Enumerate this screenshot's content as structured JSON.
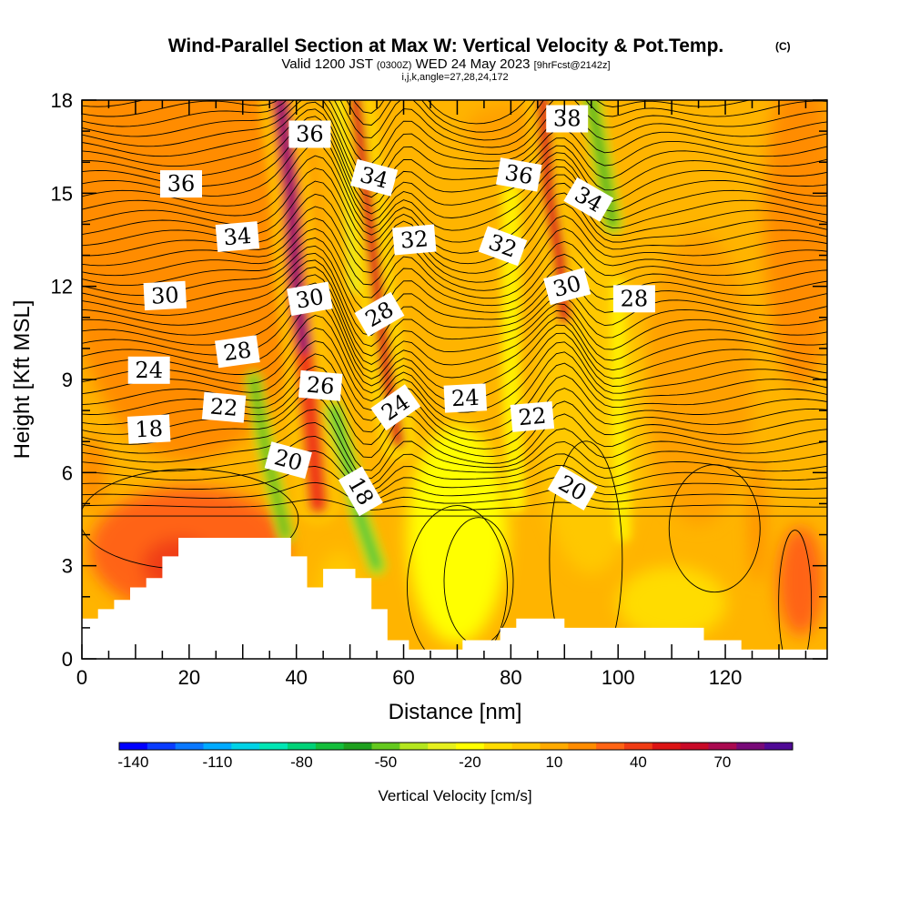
{
  "chart_data": {
    "type": "heatmap",
    "title": "Wind-Parallel Section at Max W: Vertical Velocity & Pot.Temp.",
    "title_badge": "(C)",
    "subtitle": {
      "valid": "Valid 1200 JST",
      "utc": "(0300Z)",
      "date": "WED 24 May 2023",
      "forecast": "[9hrFcst@2142z]"
    },
    "index_line": "i,j,k,angle=27,28,24,172",
    "xlabel": "Distance [nm]",
    "ylabel": "Height [Kft MSL]",
    "xlim": [
      0,
      139
    ],
    "ylim": [
      0,
      18
    ],
    "x_ticks": [
      "0",
      "20",
      "40",
      "60",
      "80",
      "100",
      "120"
    ],
    "y_ticks": [
      "0",
      "3",
      "6",
      "9",
      "12",
      "15",
      "18"
    ],
    "colorbar": {
      "label": "Vertical Velocity [cm/s]",
      "tick_labels": [
        "-140",
        "-110",
        "-80",
        "-50",
        "-20",
        "10",
        "40",
        "70"
      ],
      "colors": [
        "#0000ff",
        "#0a3cff",
        "#0a78ff",
        "#00aaff",
        "#00d2e6",
        "#00e6b4",
        "#00d278",
        "#14be3c",
        "#1ea01e",
        "#64c81e",
        "#b4e61e",
        "#e6f01e",
        "#ffff00",
        "#ffdc00",
        "#ffc800",
        "#ffaa00",
        "#ff8c00",
        "#ff6414",
        "#f03c14",
        "#dc1414",
        "#c80a28",
        "#aa0a50",
        "#780a78",
        "#500a96"
      ]
    },
    "theta_contour_labels": [
      {
        "text": "36",
        "x": 18.5,
        "y": 15.3
      },
      {
        "text": "36",
        "x": 42.5,
        "y": 16.9
      },
      {
        "text": "34",
        "x": 29,
        "y": 13.6
      },
      {
        "text": "34",
        "x": 54.5,
        "y": 15.5
      },
      {
        "text": "30",
        "x": 15.5,
        "y": 11.7
      },
      {
        "text": "30",
        "x": 42.5,
        "y": 11.6
      },
      {
        "text": "28",
        "x": 29,
        "y": 9.9
      },
      {
        "text": "28",
        "x": 55.5,
        "y": 11.1
      },
      {
        "text": "24",
        "x": 12.5,
        "y": 9.3
      },
      {
        "text": "26",
        "x": 44.5,
        "y": 8.8
      },
      {
        "text": "24",
        "x": 58.5,
        "y": 8.1
      },
      {
        "text": "22",
        "x": 26.5,
        "y": 8.1
      },
      {
        "text": "18",
        "x": 12.5,
        "y": 7.4
      },
      {
        "text": "20",
        "x": 38.5,
        "y": 6.4
      },
      {
        "text": "18",
        "x": 52,
        "y": 5.4
      },
      {
        "text": "32",
        "x": 62,
        "y": 13.5
      },
      {
        "text": "32",
        "x": 78.5,
        "y": 13.3
      },
      {
        "text": "24",
        "x": 71.5,
        "y": 8.4
      },
      {
        "text": "22",
        "x": 84,
        "y": 7.8
      },
      {
        "text": "36",
        "x": 81.5,
        "y": 15.6
      },
      {
        "text": "38",
        "x": 90.5,
        "y": 17.4
      },
      {
        "text": "34",
        "x": 94.5,
        "y": 14.8
      },
      {
        "text": "30",
        "x": 90.5,
        "y": 12.0
      },
      {
        "text": "28",
        "x": 103,
        "y": 11.6
      },
      {
        "text": "20",
        "x": 91.5,
        "y": 5.5
      }
    ],
    "terrain_profile": [
      [
        0,
        1.3
      ],
      [
        3,
        1.3
      ],
      [
        3,
        1.6
      ],
      [
        6,
        1.6
      ],
      [
        6,
        1.9
      ],
      [
        9,
        1.9
      ],
      [
        9,
        2.3
      ],
      [
        12,
        2.3
      ],
      [
        12,
        2.6
      ],
      [
        15,
        2.6
      ],
      [
        15,
        3.3
      ],
      [
        18,
        3.3
      ],
      [
        18,
        3.9
      ],
      [
        39,
        3.9
      ],
      [
        39,
        3.3
      ],
      [
        42,
        3.3
      ],
      [
        42,
        2.3
      ],
      [
        45,
        2.3
      ],
      [
        45,
        2.9
      ],
      [
        51,
        2.9
      ],
      [
        51,
        2.6
      ],
      [
        54,
        2.6
      ],
      [
        54,
        1.6
      ],
      [
        57,
        1.6
      ],
      [
        57,
        0.6
      ],
      [
        61,
        0.6
      ],
      [
        61,
        0.3
      ],
      [
        71,
        0.3
      ],
      [
        71,
        0.6
      ],
      [
        78,
        0.6
      ],
      [
        78,
        1.0
      ],
      [
        81,
        1.0
      ],
      [
        81,
        1.3
      ],
      [
        90,
        1.3
      ],
      [
        90,
        1.0
      ],
      [
        116,
        1.0
      ],
      [
        116,
        0.6
      ],
      [
        123,
        0.6
      ],
      [
        123,
        0.3
      ],
      [
        139,
        0.3
      ]
    ]
  }
}
